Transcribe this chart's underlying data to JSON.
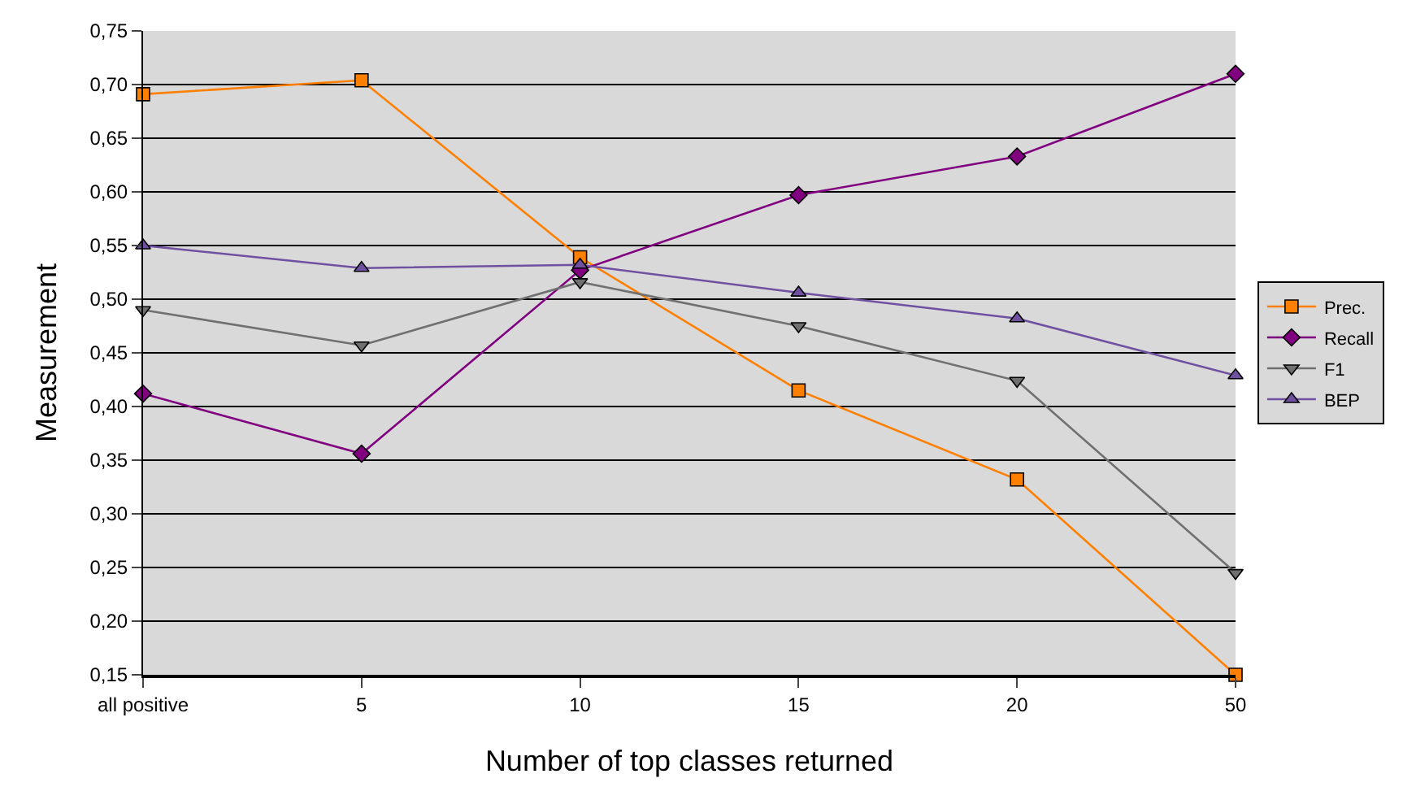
{
  "chart_data": {
    "type": "line",
    "xlabel": "Number of top classes returned",
    "ylabel": "Measurement",
    "categories": [
      "all positive",
      "5",
      "10",
      "15",
      "20",
      "50"
    ],
    "series": [
      {
        "name": "Prec.",
        "color": "#ff7f00",
        "marker": "square",
        "values": [
          0.691,
          0.704,
          0.539,
          0.415,
          0.332,
          0.15
        ]
      },
      {
        "name": "Recall",
        "color": "#800080",
        "marker": "diamond",
        "values": [
          0.412,
          0.356,
          0.527,
          0.597,
          0.633,
          0.71
        ]
      },
      {
        "name": "F1",
        "color": "#707070",
        "marker": "triangle-down",
        "values": [
          0.49,
          0.457,
          0.516,
          0.475,
          0.424,
          0.245
        ]
      },
      {
        "name": "BEP",
        "color": "#7050a0",
        "marker": "triangle",
        "values": [
          0.55,
          0.529,
          0.532,
          0.506,
          0.482,
          0.429
        ]
      }
    ],
    "ylim": [
      0.15,
      0.75
    ],
    "yticks": [
      {
        "value": 0.15,
        "label": "0,15"
      },
      {
        "value": 0.2,
        "label": "0,20"
      },
      {
        "value": 0.25,
        "label": "0,25"
      },
      {
        "value": 0.3,
        "label": "0,30"
      },
      {
        "value": 0.35,
        "label": "0,35"
      },
      {
        "value": 0.4,
        "label": "0,40"
      },
      {
        "value": 0.45,
        "label": "0,45"
      },
      {
        "value": 0.5,
        "label": "0,50"
      },
      {
        "value": 0.55,
        "label": "0,55"
      },
      {
        "value": 0.6,
        "label": "0,60"
      },
      {
        "value": 0.65,
        "label": "0,65"
      },
      {
        "value": 0.7,
        "label": "0,70"
      },
      {
        "value": 0.75,
        "label": "0,75"
      }
    ],
    "grid": "y",
    "legend": "right"
  }
}
